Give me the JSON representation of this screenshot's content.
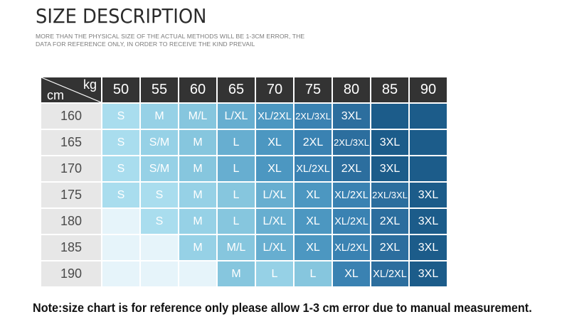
{
  "header": {
    "title": "SIZE DESCRIPTION",
    "subtitle": "MORE THAN THE PHYSICAL SIZE OF THE ACTUAL METHODS WILL BE 1-3CM ERROR, THE DATA FOR REFERENCE ONLY, IN ORDER TO RECEIVE THE KIND PREVAIL"
  },
  "table": {
    "corner_kg": "kg",
    "corner_cm": "cm",
    "weights": [
      "50",
      "55",
      "60",
      "65",
      "70",
      "75",
      "80",
      "85",
      "90"
    ],
    "rows": [
      {
        "height": "160",
        "cells": [
          "S",
          "M",
          "M/L",
          "L/XL",
          "XL/2XL",
          "2XL/3XL",
          "3XL",
          "",
          ""
        ]
      },
      {
        "height": "165",
        "cells": [
          "S",
          "S/M",
          "M",
          "L",
          "XL",
          "2XL",
          "2XL/3XL",
          "3XL",
          ""
        ]
      },
      {
        "height": "170",
        "cells": [
          "S",
          "S/M",
          "M",
          "L",
          "XL",
          "XL/2XL",
          "2XL",
          "3XL",
          ""
        ]
      },
      {
        "height": "175",
        "cells": [
          "S",
          "S",
          "M",
          "L",
          "L/XL",
          "XL",
          "XL/2XL",
          "2XL/3XL",
          "3XL"
        ]
      },
      {
        "height": "180",
        "cells": [
          "",
          "S",
          "M",
          "L",
          "L/XL",
          "XL",
          "XL/2XL",
          "2XL",
          "3XL"
        ]
      },
      {
        "height": "185",
        "cells": [
          "",
          "",
          "M",
          "M/L",
          "L/XL",
          "XL",
          "XL/2XL",
          "2XL",
          "3XL"
        ]
      },
      {
        "height": "190",
        "cells": [
          "",
          "",
          "",
          "M",
          "L",
          "L",
          "XL",
          "XL/2XL",
          "3XL"
        ]
      }
    ],
    "colors": {
      "header_bg": "#333333",
      "height_bg": "#e7e7e7",
      "grid": [
        [
          "#a9ddee",
          "#96d1e6",
          "#86c6de",
          "#67aed0",
          "#4c97c1",
          "#3a82b2",
          "#2c6e9e",
          "#1c5c8a",
          "#1c5c8a"
        ],
        [
          "#a9ddee",
          "#96d1e6",
          "#86c6de",
          "#67aed0",
          "#4c97c1",
          "#3a82b2",
          "#2c6e9e",
          "#1c5c8a",
          "#1c5c8a"
        ],
        [
          "#a9ddee",
          "#96d1e6",
          "#86c6de",
          "#67aed0",
          "#4c97c1",
          "#3a82b2",
          "#2c6e9e",
          "#1c5c8a",
          "#1c5c8a"
        ],
        [
          "#a9ddee",
          "#a9ddee",
          "#96d1e6",
          "#86c6de",
          "#67aed0",
          "#4c97c1",
          "#3a82b2",
          "#2c6e9e",
          "#1c5c8a"
        ],
        [
          "#e6f4fa",
          "#a9ddee",
          "#96d1e6",
          "#86c6de",
          "#67aed0",
          "#4c97c1",
          "#3a82b2",
          "#2c6e9e",
          "#1c5c8a"
        ],
        [
          "#e6f4fa",
          "#e6f4fa",
          "#96d1e6",
          "#86c6de",
          "#67aed0",
          "#4c97c1",
          "#3a82b2",
          "#2c6e9e",
          "#1c5c8a"
        ],
        [
          "#e6f4fa",
          "#e6f4fa",
          "#e6f4fa",
          "#86c6de",
          "#96d1e6",
          "#86c6de",
          "#3a82b2",
          "#2c6e9e",
          "#1c5c8a"
        ]
      ]
    }
  },
  "note": "Note:size chart is for reference only please allow 1-3 cm error due to manual measurement."
}
